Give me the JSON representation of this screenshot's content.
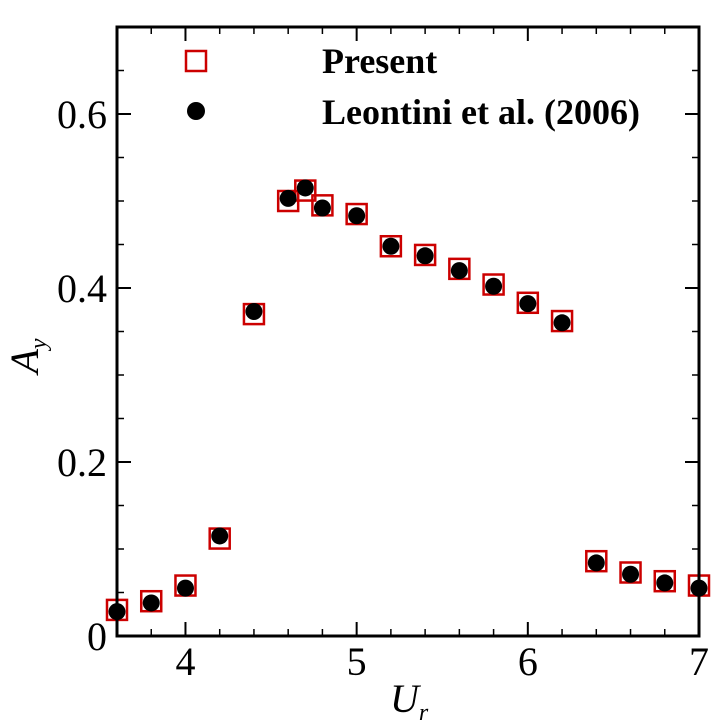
{
  "chart_data": {
    "type": "scatter",
    "xlabel": "U",
    "xlabel_sub": "r",
    "ylabel": "A",
    "ylabel_sub": "y",
    "xlim": [
      3.6,
      7.0
    ],
    "ylim": [
      0.0,
      0.7
    ],
    "x_ticks": [
      4,
      5,
      6,
      7
    ],
    "x_tick_labels": [
      "4",
      "5",
      "6",
      "7"
    ],
    "y_ticks": [
      0.0,
      0.2,
      0.4,
      0.6
    ],
    "y_tick_labels": [
      "0",
      "0.2",
      "0.4",
      "0.6"
    ],
    "grid": false,
    "legend_position": "top",
    "series": [
      {
        "name": "Present",
        "marker": "open-square",
        "color": "#cc0000",
        "x": [
          3.6,
          3.8,
          4.0,
          4.2,
          4.4,
          4.6,
          4.7,
          4.8,
          5.0,
          5.2,
          5.4,
          5.6,
          5.8,
          6.0,
          6.2,
          6.4,
          6.6,
          6.8,
          7.0
        ],
        "y": [
          0.03,
          0.04,
          0.058,
          0.112,
          0.37,
          0.5,
          0.512,
          0.495,
          0.485,
          0.448,
          0.438,
          0.422,
          0.404,
          0.383,
          0.362,
          0.086,
          0.073,
          0.063,
          0.058
        ]
      },
      {
        "name": "Leontini et al. (2006)",
        "marker": "filled-circle",
        "color": "#000000",
        "x": [
          3.6,
          3.8,
          4.0,
          4.2,
          4.4,
          4.6,
          4.7,
          4.8,
          5.0,
          5.2,
          5.4,
          5.6,
          5.8,
          6.0,
          6.2,
          6.4,
          6.6,
          6.8,
          7.0
        ],
        "y": [
          0.028,
          0.038,
          0.055,
          0.115,
          0.373,
          0.503,
          0.515,
          0.492,
          0.483,
          0.448,
          0.437,
          0.42,
          0.402,
          0.382,
          0.36,
          0.084,
          0.071,
          0.061,
          0.055
        ]
      }
    ]
  }
}
